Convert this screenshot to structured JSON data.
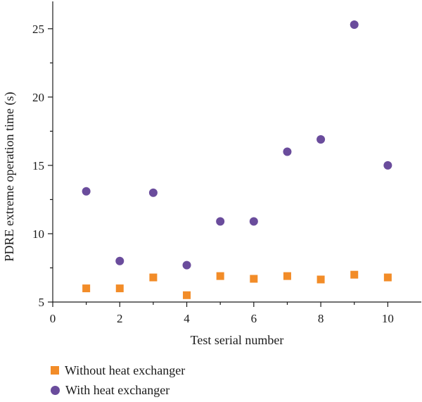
{
  "chart_data": {
    "type": "scatter",
    "xlabel": "Test serial number",
    "ylabel": "PDRE extreme operation time (s)",
    "xlim": [
      0,
      11
    ],
    "ylim": [
      5,
      27
    ],
    "x_ticks": [
      0,
      2,
      4,
      6,
      8,
      10
    ],
    "y_ticks": [
      5,
      10,
      15,
      20,
      25
    ],
    "grid": false,
    "legend_position": "bottom-left",
    "series": [
      {
        "name": "Without heat exchanger",
        "marker": "square",
        "color": "#f28c28",
        "x": [
          1,
          2,
          3,
          4,
          5,
          6,
          7,
          8,
          9,
          10
        ],
        "y": [
          6.0,
          6.0,
          6.8,
          5.5,
          6.9,
          6.7,
          6.9,
          6.65,
          7.0,
          6.8
        ]
      },
      {
        "name": "With heat exchanger",
        "marker": "circle",
        "color": "#6a4c9c",
        "x": [
          1,
          2,
          3,
          4,
          5,
          6,
          7,
          8,
          9,
          10
        ],
        "y": [
          13.1,
          8.0,
          13.0,
          7.7,
          10.9,
          10.9,
          16.0,
          16.9,
          25.3,
          15.0
        ]
      }
    ]
  }
}
